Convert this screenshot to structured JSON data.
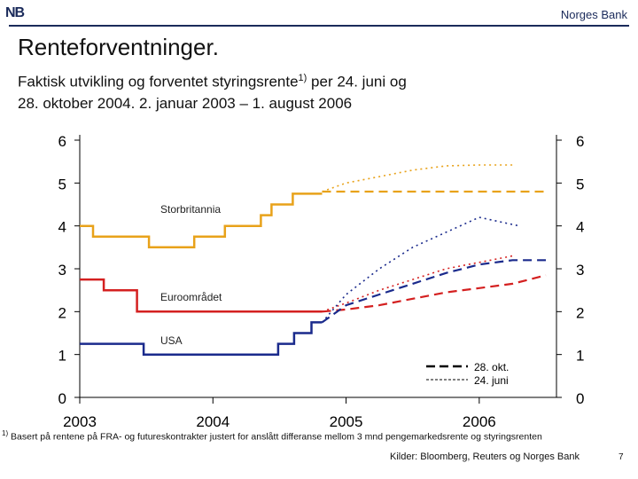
{
  "header": {
    "logo_text": "NB",
    "brand": "Norges Bank"
  },
  "slide": {
    "title": "Renteforventninger.",
    "subtitle_line1_a": "Faktisk utvikling og forventet styringsrente",
    "subtitle_sup": "1)",
    "subtitle_line1_b": "  per 24. juni og",
    "subtitle_line2": "28. oktober 2004.  2. januar 2003 – 1. august 2006",
    "footnote_mark": "1)",
    "footnote": " Basert på rentene på FRA- og futureskontrakter justert for anslått differanse mellom 3 mnd pengemarkedsrente og styringsrenten",
    "source": "Kilder: Bloomberg, Reuters og Norges Bank",
    "page_number": "7"
  },
  "chart_data": {
    "type": "line",
    "x_ticks": [
      "2003",
      "2004",
      "2005",
      "2006"
    ],
    "y_ticks": [
      "0",
      "1",
      "2",
      "3",
      "4",
      "5",
      "6"
    ],
    "xlim": [
      2003.0,
      2006.58
    ],
    "ylim": [
      0,
      6
    ],
    "grid": false,
    "region_labels": [
      "Storbritannia",
      "Euroområdet",
      "USA"
    ],
    "legend": {
      "placement": "bottom-right",
      "entries": [
        "28. okt.",
        "24. juni"
      ]
    },
    "series": [
      {
        "group": "Storbritannia",
        "style": "actual",
        "color": "#E8A21A",
        "points": [
          [
            2003.0,
            4.0
          ],
          [
            2003.1,
            4.0
          ],
          [
            2003.1,
            3.75
          ],
          [
            2003.52,
            3.75
          ],
          [
            2003.52,
            3.5
          ],
          [
            2003.86,
            3.5
          ],
          [
            2003.86,
            3.75
          ],
          [
            2004.09,
            3.75
          ],
          [
            2004.09,
            4.0
          ],
          [
            2004.36,
            4.0
          ],
          [
            2004.36,
            4.25
          ],
          [
            2004.44,
            4.25
          ],
          [
            2004.44,
            4.5
          ],
          [
            2004.6,
            4.5
          ],
          [
            2004.6,
            4.75
          ],
          [
            2004.82,
            4.75
          ]
        ]
      },
      {
        "group": "Euroområdet",
        "style": "actual",
        "color": "#D42020",
        "points": [
          [
            2003.0,
            2.75
          ],
          [
            2003.18,
            2.75
          ],
          [
            2003.18,
            2.5
          ],
          [
            2003.43,
            2.5
          ],
          [
            2003.43,
            2.0
          ],
          [
            2004.82,
            2.0
          ]
        ]
      },
      {
        "group": "USA",
        "style": "actual",
        "color": "#1A2A8C",
        "points": [
          [
            2003.0,
            1.25
          ],
          [
            2003.48,
            1.25
          ],
          [
            2003.48,
            1.0
          ],
          [
            2004.49,
            1.0
          ],
          [
            2004.49,
            1.25
          ],
          [
            2004.61,
            1.25
          ],
          [
            2004.61,
            1.5
          ],
          [
            2004.74,
            1.5
          ],
          [
            2004.74,
            1.75
          ],
          [
            2004.82,
            1.75
          ]
        ]
      },
      {
        "group": "Storbritannia",
        "style": "28. okt.",
        "color": "#E8A21A",
        "points": [
          [
            2004.82,
            4.8
          ],
          [
            2005.0,
            4.8
          ],
          [
            2005.5,
            4.8
          ],
          [
            2006.0,
            4.8
          ],
          [
            2006.5,
            4.8
          ]
        ]
      },
      {
        "group": "Storbritannia",
        "style": "24. juni",
        "color": "#E8A21A",
        "points": [
          [
            2004.82,
            4.8
          ],
          [
            2005.0,
            5.0
          ],
          [
            2005.25,
            5.15
          ],
          [
            2005.5,
            5.3
          ],
          [
            2005.75,
            5.4
          ],
          [
            2006.0,
            5.42
          ],
          [
            2006.25,
            5.42
          ]
        ]
      },
      {
        "group": "Euroområdet",
        "style": "28. okt.",
        "color": "#D42020",
        "points": [
          [
            2004.82,
            2.0
          ],
          [
            2005.0,
            2.05
          ],
          [
            2005.25,
            2.15
          ],
          [
            2005.5,
            2.3
          ],
          [
            2005.75,
            2.45
          ],
          [
            2006.0,
            2.55
          ],
          [
            2006.25,
            2.65
          ],
          [
            2006.5,
            2.85
          ]
        ]
      },
      {
        "group": "Euroområdet",
        "style": "24. juni",
        "color": "#D42020",
        "points": [
          [
            2004.82,
            2.0
          ],
          [
            2005.0,
            2.2
          ],
          [
            2005.25,
            2.5
          ],
          [
            2005.5,
            2.75
          ],
          [
            2005.75,
            3.0
          ],
          [
            2006.0,
            3.15
          ],
          [
            2006.25,
            3.3
          ]
        ]
      },
      {
        "group": "USA",
        "style": "28. okt.",
        "color": "#1A2A8C",
        "points": [
          [
            2004.82,
            1.75
          ],
          [
            2005.0,
            2.15
          ],
          [
            2005.25,
            2.4
          ],
          [
            2005.5,
            2.65
          ],
          [
            2005.75,
            2.9
          ],
          [
            2006.0,
            3.1
          ],
          [
            2006.25,
            3.2
          ],
          [
            2006.5,
            3.2
          ]
        ]
      },
      {
        "group": "USA",
        "style": "24. juni",
        "color": "#1A2A8C",
        "points": [
          [
            2004.82,
            1.75
          ],
          [
            2005.0,
            2.4
          ],
          [
            2005.25,
            3.0
          ],
          [
            2005.5,
            3.5
          ],
          [
            2005.75,
            3.85
          ],
          [
            2006.0,
            4.2
          ],
          [
            2006.3,
            4.0
          ]
        ]
      }
    ]
  }
}
